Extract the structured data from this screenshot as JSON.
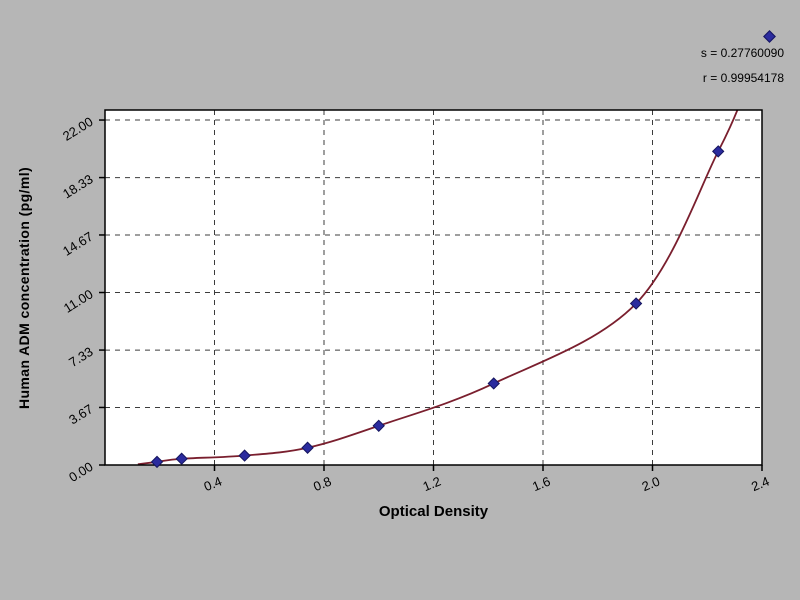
{
  "page": {
    "background": "#b6b6b6"
  },
  "annotation": {
    "line1": "s = 0.27760090",
    "line2": "r = 0.99954178"
  },
  "chart_data": {
    "type": "scatter",
    "title": "",
    "xlabel": "Optical Density",
    "ylabel": "Human ADM concentration (pg/ml)",
    "xlim": [
      0,
      2.4
    ],
    "ylim": [
      0,
      22.64
    ],
    "grid": "dashed",
    "legend_position": "none",
    "x_ticks": [
      {
        "label": "0.4",
        "value": 0.4
      },
      {
        "label": "0.8",
        "value": 0.8
      },
      {
        "label": "1.2",
        "value": 1.2
      },
      {
        "label": "1.6",
        "value": 1.6
      },
      {
        "label": "2.0",
        "value": 2.0
      },
      {
        "label": "2.4",
        "value": 2.4
      }
    ],
    "y_ticks": [
      {
        "label": "0.00",
        "value": 0
      },
      {
        "label": "3.67",
        "value": 3.67
      },
      {
        "label": "7.33",
        "value": 7.33
      },
      {
        "label": "11.00",
        "value": 11.0
      },
      {
        "label": "14.67",
        "value": 14.67
      },
      {
        "label": "18.33",
        "value": 18.33
      },
      {
        "label": "22.00",
        "value": 22.0
      }
    ],
    "points": [
      {
        "x": 0.19,
        "y": 0.2
      },
      {
        "x": 0.28,
        "y": 0.4
      },
      {
        "x": 0.51,
        "y": 0.6
      },
      {
        "x": 0.74,
        "y": 1.1
      },
      {
        "x": 1.0,
        "y": 2.5
      },
      {
        "x": 1.42,
        "y": 5.2
      },
      {
        "x": 1.94,
        "y": 10.3
      },
      {
        "x": 2.24,
        "y": 20.0
      }
    ],
    "curve_points": [
      [
        0.12,
        0.05
      ],
      [
        0.19,
        0.2
      ],
      [
        0.28,
        0.4
      ],
      [
        0.51,
        0.6
      ],
      [
        0.74,
        1.1
      ],
      [
        1.0,
        2.5
      ],
      [
        1.42,
        5.2
      ],
      [
        1.94,
        10.3
      ],
      [
        2.24,
        20.0
      ],
      [
        2.33,
        23.5
      ]
    ],
    "fit": {
      "s": "0.27760090",
      "r": "0.99954178"
    },
    "colors": {
      "curve": "#7a1f2e",
      "point": "#2b2b9e",
      "point_border": "#15155e",
      "grid": "#3c3c3c",
      "plot_bg": "#ffffff",
      "frame": "#000000"
    }
  }
}
